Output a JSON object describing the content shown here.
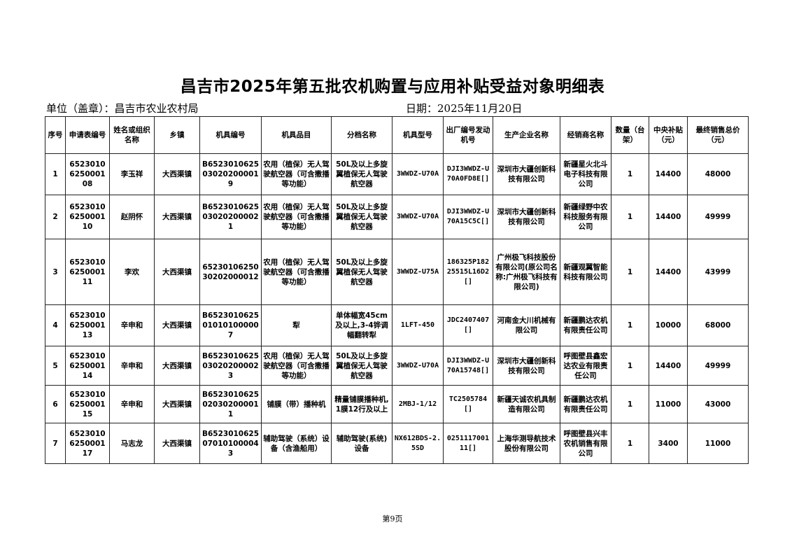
{
  "title": "昌吉市2025年第五批农机购置与应用补贴受益对象明细表",
  "unit_label": "单位（盖章）：昌吉市农业农村局",
  "date_label": "日期：2025年11月20日",
  "headers": [
    "序号",
    "申请表编号",
    "姓名或组织名称",
    "乡镇",
    "机具编号",
    "机具品目",
    "分档名称",
    "机具型号",
    "出厂编号发动机号",
    "生产企业名称",
    "经销商名称",
    "数量（台架）",
    "中央补贴（元）",
    "最终销售总价（元）"
  ],
  "rows": [
    [
      "1",
      "6523010625000108",
      "李玉祥",
      "大西渠镇",
      "B6523010625030202000019",
      "农用（植保）无人驾驶航空器（可含撒播等功能）",
      "50L及以上多旋翼植保无人驾驶航空器",
      "3WWDZ-U70A",
      "DJI3WWDZ-U70A0FD8E[]",
      "深圳市大疆创新科技有限公司",
      "新疆星火北斗电子科技有限公司",
      "1",
      "14400",
      "48000"
    ],
    [
      "2",
      "6523010625000110",
      "赵阴怀",
      "大西渠镇",
      "B6523010625030202000021",
      "农用（植保）无人驾驶航空器（可含撒播等功能）",
      "50L及以上多旋翼植保无人驾驶航空器",
      "3WWDZ-U70A",
      "DJI3WWDZ-U70A15C5C[]",
      "深圳市大疆创新科技有限公司",
      "新疆绿野中农科技服务有限公司",
      "1",
      "14400",
      "49999"
    ],
    [
      "3",
      "6523010625000111",
      "李欢",
      "大西渠镇",
      "6523010625030202000012",
      "农用（植保）无人驾驶航空器（可含撒播等功能）",
      "50L及以上多旋翼植保无人驾驶航空器",
      "3WWDZ-U75A",
      "186325P18225515L16D2[]",
      "广州极飞科技股份有限公司(原公司名称:广州极飞科技有限公司)",
      "新疆观翼智能科技有限公司",
      "1",
      "14400",
      "43999"
    ],
    [
      "4",
      "6523010625000113",
      "辛申和",
      "大西渠镇",
      "B6523010625010101000007",
      "犁",
      "单体幅宽45cm及以上,3-4铧调幅翻转犁",
      "1LFT-450",
      "JDC2407407[]",
      "河南金大川机械有限公司",
      "新疆鹏达农机有限责任公司",
      "1",
      "10000",
      "68000"
    ],
    [
      "5",
      "6523010625000114",
      "辛申和",
      "大西渠镇",
      "B6523010625030202000023",
      "农用（植保）无人驾驶航空器（可含撒播等功能）",
      "50L及以上多旋翼植保无人驾驶航空器",
      "3WWDZ-U70A",
      "DJI3WWDZ-U70A15748[]",
      "深圳市大疆创新科技有限公司",
      "呼图壁县鑫宏达农业有限责任公司",
      "1",
      "14400",
      "49999"
    ],
    [
      "6",
      "6523010625000115",
      "辛申和",
      "大西渠镇",
      "B6523010625020302000011",
      "铺膜（带）播种机",
      "精量铺膜播种机,1膜12行及以上",
      "2MBJ-1/12",
      "TC2505784[]",
      "新疆天诚农机具制造有限公司",
      "新疆鹏达农机有限责任公司",
      "1",
      "11000",
      "43000"
    ],
    [
      "7",
      "6523010625000117",
      "马志龙",
      "大西渠镇",
      "B6523010625070101000043",
      "辅助驾驶（系统）设备（含渔船用）",
      "辅助驾驶(系统)设备",
      "NX612BDS-2.5SD",
      "025111700111[]",
      "上海华测导航技术股份有限公司",
      "呼图壁县兴丰农机销售有限公司",
      "1",
      "3400",
      "11000"
    ]
  ],
  "footer": "第9页"
}
